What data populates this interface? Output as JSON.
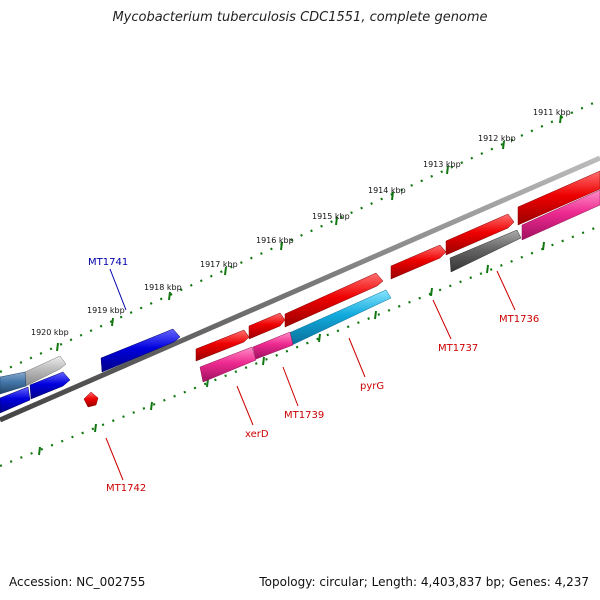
{
  "title": "Mycobacterium tuberculosis CDC1551, complete genome",
  "footer": {
    "accession": "Accession: NC_002755",
    "topology": "Topology: circular; Length: 4,403,837 bp; Genes: 4,237"
  },
  "colors": {
    "forward_gene": "#ee0000",
    "reverse_gene": "#0000dd",
    "pseudo_gene": "#777777",
    "rna_gene": "#ee2a90",
    "cyan_gene": "#11aadd",
    "steel_gene": "#4477aa",
    "silver_gene": "#bbbbbb",
    "backbone": "#777777",
    "tick": "#117711"
  },
  "ticks": [
    "1911 kbp",
    "1912 kbp",
    "1913 kbp",
    "1914 kbp",
    "1915 kbp",
    "1916 kbp",
    "1917 kbp",
    "1918 kbp",
    "1919 kbp",
    "1920 kbp"
  ],
  "gene_labels": [
    {
      "id": "label-mt1741",
      "text": "MT1741",
      "color": "#0000aa"
    },
    {
      "id": "label-mt1742",
      "text": "MT1742",
      "color": "#cc0000"
    },
    {
      "id": "label-xerd",
      "text": "xerD",
      "color": "#cc0000"
    },
    {
      "id": "label-mt1739",
      "text": "MT1739",
      "color": "#cc0000"
    },
    {
      "id": "label-pyrg",
      "text": "pyrG",
      "color": "#cc0000"
    },
    {
      "id": "label-mt1737",
      "text": "MT1737",
      "color": "#cc0000"
    },
    {
      "id": "label-mt1736",
      "text": "MT1736",
      "color": "#cc0000"
    }
  ]
}
